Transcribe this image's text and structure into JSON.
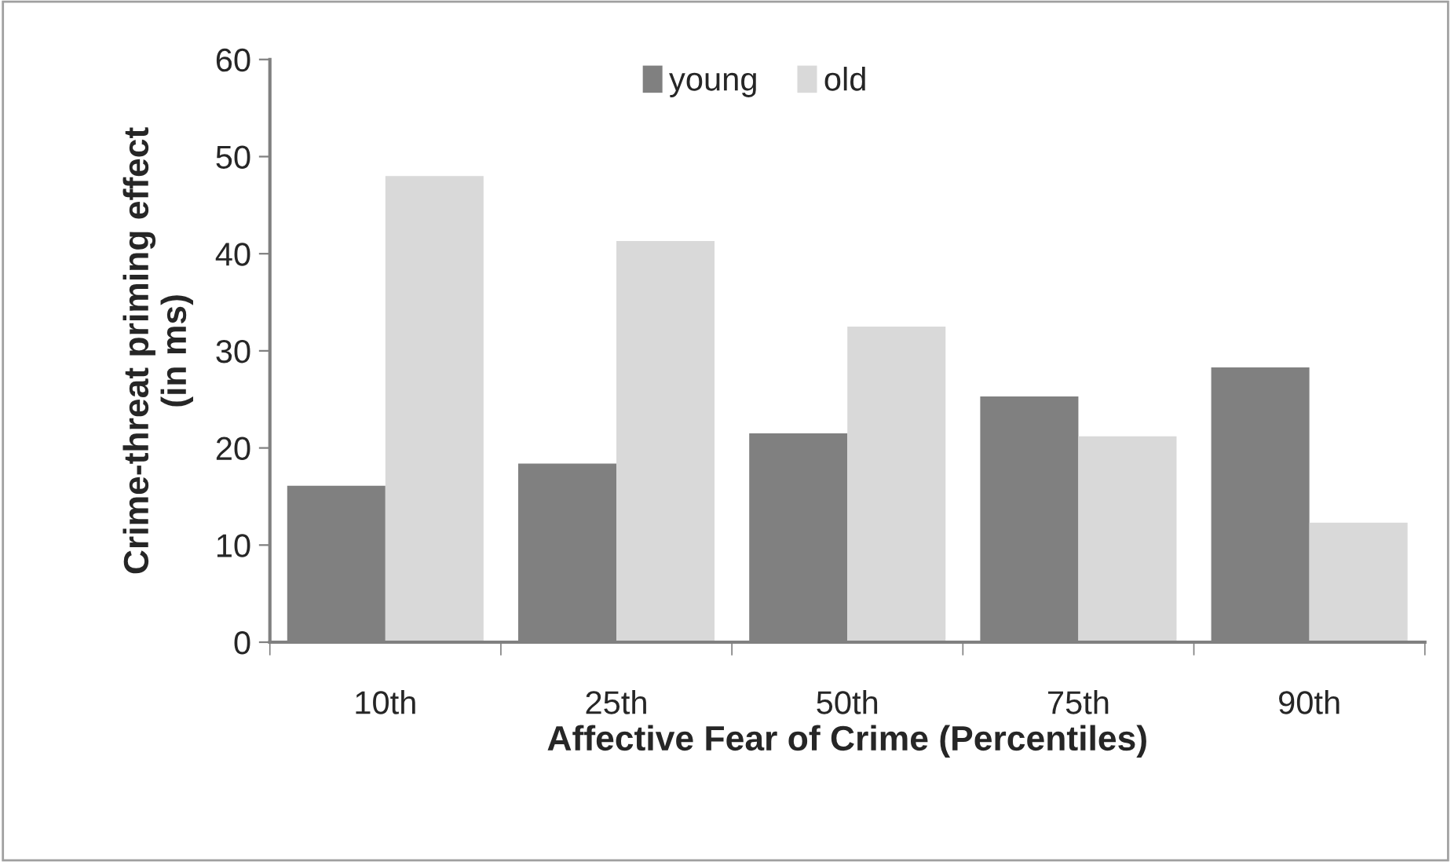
{
  "chart_data": {
    "type": "bar",
    "xlabel": "Affective Fear of Crime (Percentiles)",
    "ylabel": "Crime-threat priming effect\n(in ms)",
    "categories": [
      "10th",
      "25th",
      "50th",
      "75th",
      "90th"
    ],
    "series": [
      {
        "name": "young",
        "color": "#808080",
        "values": [
          16.1,
          18.4,
          21.5,
          25.3,
          28.3
        ]
      },
      {
        "name": "old",
        "color": "#d9d9d9",
        "values": [
          48.0,
          41.3,
          32.5,
          21.2,
          12.3
        ]
      }
    ],
    "ylim": [
      0,
      60
    ],
    "yticks": [
      0,
      10,
      20,
      30,
      40,
      50,
      60
    ],
    "grid": false,
    "legend": "top"
  }
}
